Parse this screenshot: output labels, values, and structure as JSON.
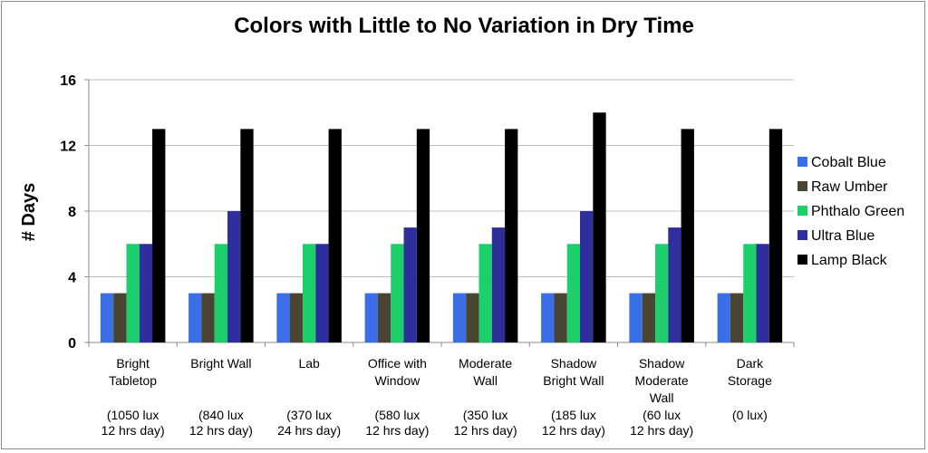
{
  "chart_data": {
    "type": "bar",
    "title": "Colors with Little to No Variation in Dry Time",
    "xlabel": "",
    "ylabel": "# Days",
    "ylim": [
      0,
      16
    ],
    "yticks": [
      0,
      4,
      8,
      12,
      16
    ],
    "grid": true,
    "legend_position": "right",
    "categories": [
      {
        "lines": [
          "Bright",
          "Tabletop"
        ],
        "note": [
          "(1050 lux",
          "12 hrs day)"
        ]
      },
      {
        "lines": [
          "Bright Wall"
        ],
        "note": [
          "(840 lux",
          "12 hrs day)"
        ]
      },
      {
        "lines": [
          "Lab"
        ],
        "note": [
          "(370 lux",
          "24 hrs day)"
        ]
      },
      {
        "lines": [
          "Office with",
          "Window"
        ],
        "note": [
          "(580 lux",
          "12 hrs day)"
        ]
      },
      {
        "lines": [
          "Moderate",
          "Wall"
        ],
        "note": [
          "(350 lux",
          "12 hrs day)"
        ]
      },
      {
        "lines": [
          "Shadow",
          "Bright Wall"
        ],
        "note": [
          "(185 lux",
          "12 hrs day)"
        ]
      },
      {
        "lines": [
          "Shadow",
          "Moderate",
          "Wall"
        ],
        "note": [
          "(60 lux",
          "12 hrs day)"
        ]
      },
      {
        "lines": [
          "Dark",
          "Storage"
        ],
        "note": [
          "(0 lux)"
        ]
      }
    ],
    "series": [
      {
        "name": "Cobalt Blue",
        "color": "#3a6fe8",
        "values": [
          3,
          3,
          3,
          3,
          3,
          3,
          3,
          3
        ]
      },
      {
        "name": "Raw Umber",
        "color": "#4a4532",
        "values": [
          3,
          3,
          3,
          3,
          3,
          3,
          3,
          3
        ]
      },
      {
        "name": "Phthalo Green",
        "color": "#1ccf6a",
        "values": [
          6,
          6,
          6,
          6,
          6,
          6,
          6,
          6
        ]
      },
      {
        "name": "Ultra Blue",
        "color": "#2e2e9c",
        "values": [
          6,
          8,
          6,
          7,
          7,
          8,
          7,
          6
        ]
      },
      {
        "name": "Lamp Black",
        "color": "#000000",
        "values": [
          13,
          13,
          13,
          13,
          13,
          14,
          13,
          13
        ]
      }
    ]
  }
}
